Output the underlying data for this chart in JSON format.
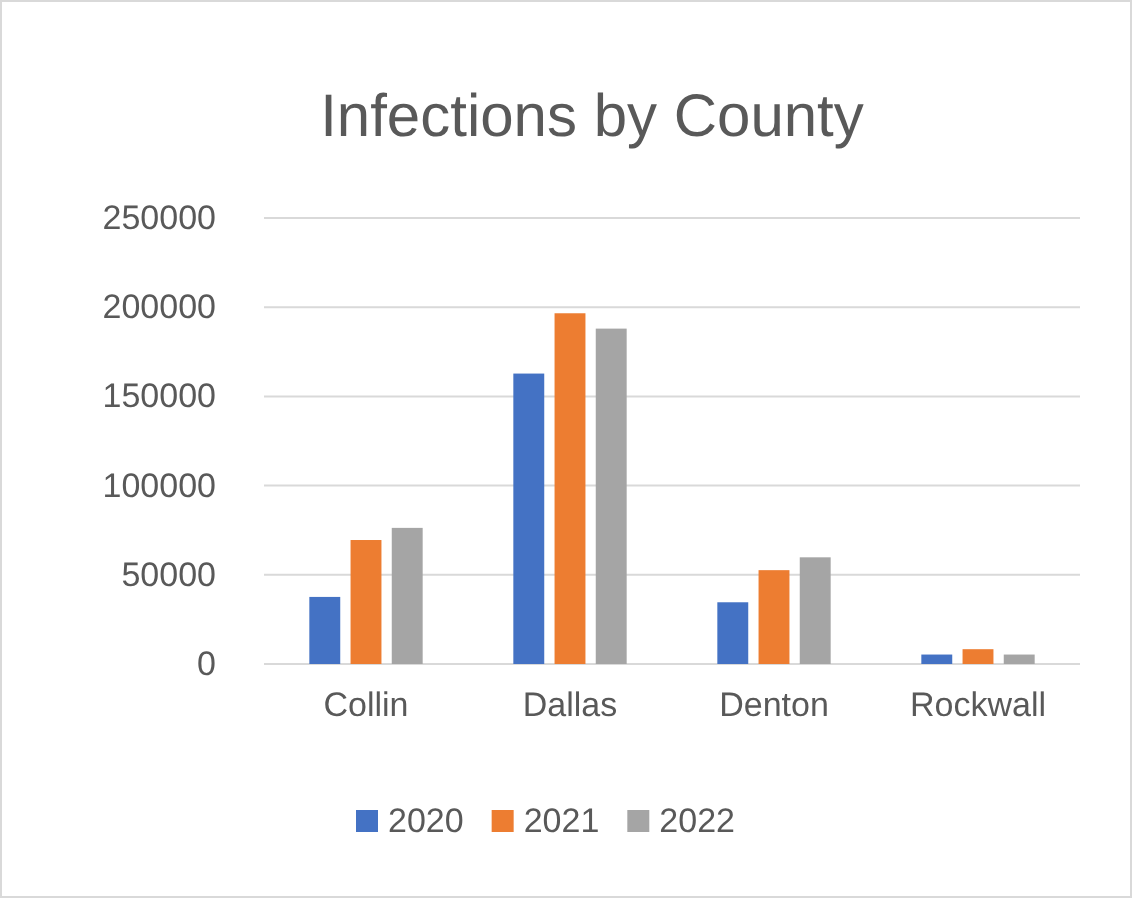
{
  "chart_data": {
    "type": "bar",
    "title": "Infections by County",
    "categories": [
      "Collin",
      "Dallas",
      "Denton",
      "Rockwall"
    ],
    "series": [
      {
        "name": "2020",
        "color": "#4472c4",
        "values": [
          37600,
          162800,
          34600,
          5300
        ]
      },
      {
        "name": "2021",
        "color": "#ed7d31",
        "values": [
          69500,
          196600,
          52600,
          8300
        ]
      },
      {
        "name": "2022",
        "color": "#a5a5a5",
        "values": [
          76300,
          188000,
          59800,
          5300
        ]
      }
    ],
    "ylim": [
      0,
      250000
    ],
    "yticks": [
      0,
      50000,
      100000,
      150000,
      200000,
      250000
    ],
    "grid": "y",
    "legend": "bottom"
  }
}
